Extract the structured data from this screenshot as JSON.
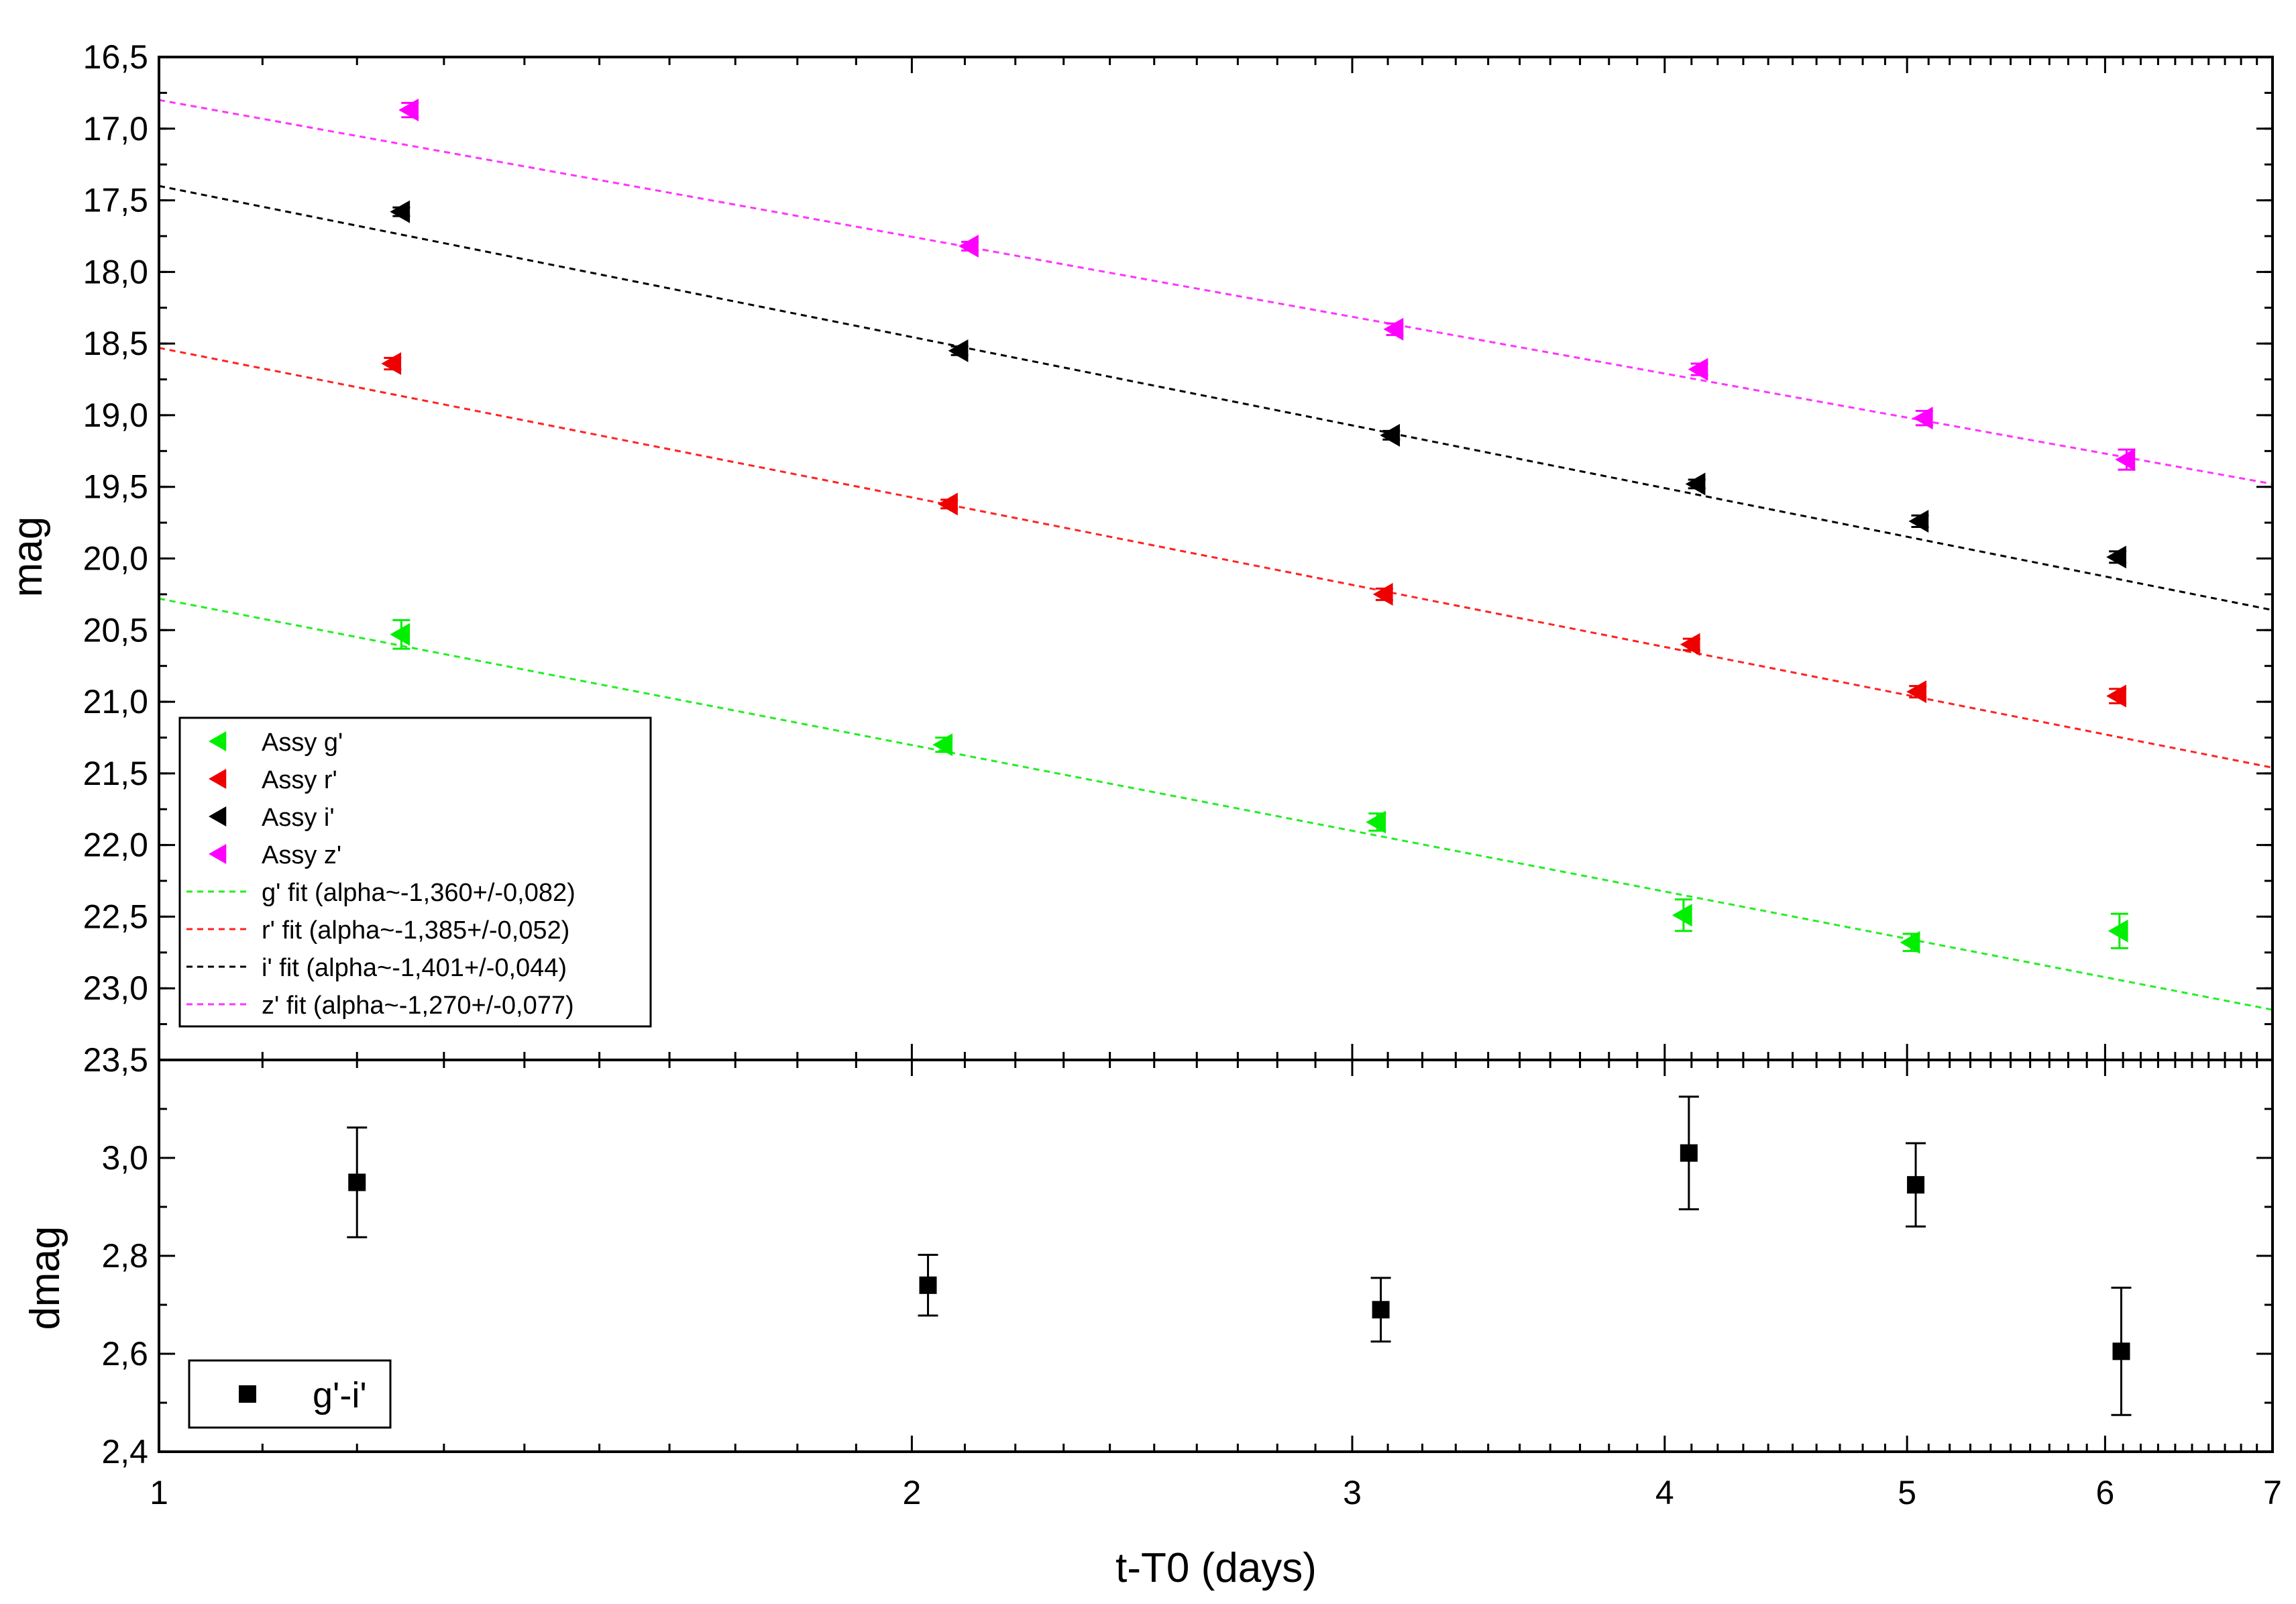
{
  "chart_data": [
    {
      "type": "scatter",
      "panel": "top",
      "ylabel": "mag",
      "x_scale": "log",
      "y_inverted": true,
      "xlim": [
        1,
        7
      ],
      "ylim": [
        16.5,
        23.5
      ],
      "yticks": [
        16.5,
        17.0,
        17.5,
        18.0,
        18.5,
        19.0,
        19.5,
        20.0,
        20.5,
        21.0,
        21.5,
        22.0,
        22.5,
        23.0,
        23.5
      ],
      "ytick_labels": [
        "16,5",
        "17,0",
        "17,5",
        "18,0",
        "18,5",
        "19,0",
        "19,5",
        "20,0",
        "20,5",
        "21,0",
        "21,5",
        "22,0",
        "22,5",
        "23,0",
        "23,5"
      ],
      "legend_position": "bottom-left",
      "series": [
        {
          "name": "Assy g'",
          "marker": "triangle-left",
          "color": "#00ee00",
          "x": [
            1.25,
            2.06,
            3.07,
            4.07,
            5.02,
            6.08
          ],
          "y": [
            20.53,
            21.3,
            21.84,
            22.49,
            22.68,
            22.6
          ],
          "yerr": [
            0.1,
            0.05,
            0.06,
            0.11,
            0.06,
            0.12
          ]
        },
        {
          "name": "Assy r'",
          "marker": "triangle-left",
          "color": "#ee0000",
          "x": [
            1.24,
            2.07,
            3.09,
            4.1,
            5.05,
            6.07
          ],
          "y": [
            18.64,
            19.62,
            20.25,
            20.6,
            20.93,
            20.96
          ],
          "yerr": [
            0.04,
            0.03,
            0.04,
            0.04,
            0.04,
            0.05
          ]
        },
        {
          "name": "Assy i'",
          "marker": "triangle-left",
          "color": "#000000",
          "x": [
            1.25,
            2.09,
            3.11,
            4.12,
            5.06,
            6.07
          ],
          "y": [
            17.58,
            18.55,
            19.14,
            19.48,
            19.74,
            19.99
          ],
          "yerr": [
            0.03,
            0.03,
            0.03,
            0.03,
            0.04,
            0.04
          ]
        },
        {
          "name": "Assy z'",
          "marker": "triangle-left",
          "color": "#ff00ff",
          "x": [
            1.26,
            2.11,
            3.12,
            4.13,
            5.08,
            6.12
          ],
          "y": [
            16.87,
            17.82,
            18.4,
            18.68,
            19.02,
            19.31
          ],
          "yerr": [
            0.05,
            0.03,
            0.04,
            0.04,
            0.05,
            0.07
          ]
        }
      ],
      "fits": [
        {
          "name": "g' fit (alpha~-1,360+/-0,082)",
          "color": "#22ee22",
          "y_at_1": 20.28,
          "y_at_7": 23.15
        },
        {
          "name": "r' fit (alpha~-1,385+/-0,052)",
          "color": "#ff2222",
          "y_at_1": 18.53,
          "y_at_7": 21.46
        },
        {
          "name": "i' fit (alpha~-1,401+/-0,044)",
          "color": "#000000",
          "y_at_1": 17.4,
          "y_at_7": 20.36
        },
        {
          "name": "z' fit (alpha~-1,270+/-0,077)",
          "color": "#ff33ff",
          "y_at_1": 16.8,
          "y_at_7": 19.48
        }
      ]
    },
    {
      "type": "scatter",
      "panel": "bottom",
      "xlabel": "t-T0 (days)",
      "ylabel": "dmag",
      "x_scale": "log",
      "xlim": [
        1,
        7
      ],
      "ylim": [
        2.4,
        3.2
      ],
      "xticks": [
        1,
        2,
        3,
        4,
        5,
        6,
        7
      ],
      "xtick_labels": [
        "1",
        "2",
        "3",
        "4",
        "5",
        "6",
        "7"
      ],
      "yticks": [
        2.4,
        2.6,
        2.8,
        3.0
      ],
      "ytick_labels": [
        "2,4",
        "2,6",
        "2,8",
        "3,0"
      ],
      "legend_position": "bottom-left",
      "series": [
        {
          "name": "g'-i'",
          "marker": "square",
          "color": "#000000",
          "x": [
            1.2,
            2.03,
            3.08,
            4.09,
            5.04,
            6.09
          ],
          "y": [
            2.95,
            2.74,
            2.69,
            3.01,
            2.945,
            2.605
          ],
          "yerr": [
            0.112,
            0.062,
            0.065,
            0.115,
            0.085,
            0.13
          ]
        }
      ]
    }
  ]
}
